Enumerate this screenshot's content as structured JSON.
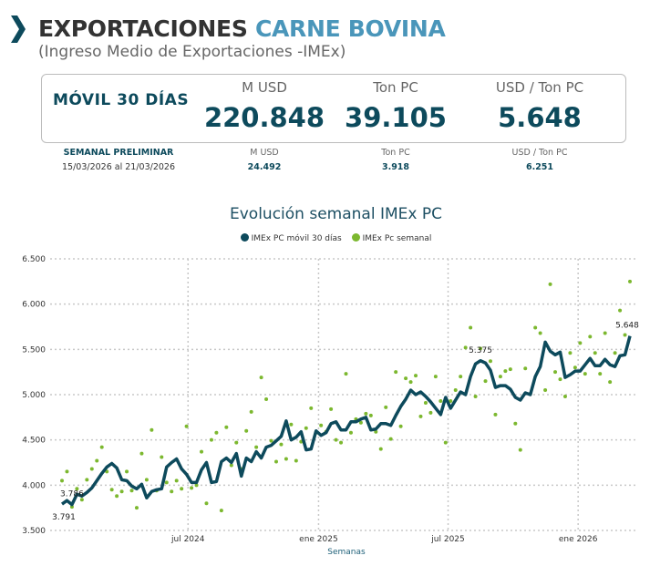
{
  "header": {
    "title_part1": "EXPORTACIONES",
    "title_part2": "CARNE BOVINA",
    "subtitle": "(Ingreso Medio de Exportaciones -IMEx)"
  },
  "summary": {
    "label": "MÓVIL 30 DÍAS",
    "columns": [
      {
        "label": "M USD",
        "value": "220.848"
      },
      {
        "label": "Ton PC",
        "value": "39.105"
      },
      {
        "label": "USD / Ton PC",
        "value": "5.648"
      }
    ]
  },
  "weekly": {
    "label": "SEMANAL PRELIMINAR",
    "range": "15/03/2026 al 21/03/2026",
    "columns": [
      {
        "label": "M USD",
        "value": "24.492"
      },
      {
        "label": "Ton PC",
        "value": "3.918"
      },
      {
        "label": "USD / Ton PC",
        "value": "6.251"
      }
    ]
  },
  "colors": {
    "accent": "#4a96ba",
    "dark": "#0d4a5c",
    "green": "#7cb82f"
  },
  "chart_data": {
    "type": "line",
    "title": "Evolución semanal IMEx PC",
    "xlabel": "Semanas",
    "ylabel": "",
    "ylim": [
      3500,
      6500
    ],
    "yticks": [
      3500,
      4000,
      4500,
      5000,
      5500,
      6000,
      6500
    ],
    "ytick_labels": [
      "3.500",
      "4.000",
      "4.500",
      "5.000",
      "5.500",
      "6.000",
      "6.500"
    ],
    "xticks": [
      {
        "week": 25.3,
        "label": "jul 2024"
      },
      {
        "week": 51.5,
        "label": "ene 2025"
      },
      {
        "week": 77.5,
        "label": "jul 2025"
      },
      {
        "week": 103.6,
        "label": "ene 2026"
      }
    ],
    "grid": true,
    "legend_position": "top-center",
    "series": [
      {
        "name": "IMEx PC móvil 30 días",
        "kind": "line",
        "color": "#0d4a5c",
        "values": [
          3791,
          3830,
          3786,
          3900,
          3880,
          3920,
          3970,
          4050,
          4130,
          4200,
          4240,
          4190,
          4060,
          4050,
          3990,
          3960,
          4010,
          3860,
          3930,
          3950,
          3960,
          4200,
          4250,
          4290,
          4180,
          4120,
          4030,
          4030,
          4170,
          4250,
          4030,
          4040,
          4260,
          4300,
          4250,
          4350,
          4100,
          4300,
          4260,
          4370,
          4300,
          4420,
          4440,
          4490,
          4540,
          4710,
          4500,
          4530,
          4590,
          4390,
          4400,
          4600,
          4550,
          4580,
          4680,
          4700,
          4610,
          4610,
          4700,
          4700,
          4730,
          4750,
          4610,
          4620,
          4680,
          4680,
          4660,
          4770,
          4870,
          4950,
          5050,
          5000,
          5030,
          4980,
          4920,
          4850,
          4780,
          4970,
          4850,
          4940,
          5030,
          5000,
          5200,
          5340,
          5375,
          5350,
          5270,
          5080,
          5100,
          5100,
          5060,
          4970,
          4940,
          5020,
          5000,
          5200,
          5310,
          5580,
          5480,
          5440,
          5470,
          5190,
          5220,
          5260,
          5260,
          5330,
          5400,
          5320,
          5320,
          5390,
          5330,
          5310,
          5430,
          5440,
          5648
        ]
      },
      {
        "name": "IMEx Pc semanal",
        "kind": "scatter",
        "color": "#7cb82f",
        "values": [
          4050,
          4150,
          3760,
          3960,
          3840,
          4060,
          4180,
          4270,
          4420,
          4150,
          3950,
          3880,
          3930,
          4150,
          3940,
          3750,
          4350,
          4060,
          4610,
          3940,
          4310,
          4030,
          3930,
          4050,
          3960,
          4650,
          3970,
          4000,
          4370,
          3800,
          4500,
          4580,
          3720,
          4640,
          4220,
          4470,
          4180,
          4600,
          4810,
          4420,
          5190,
          4950,
          4490,
          4260,
          4450,
          4290,
          4670,
          4270,
          4480,
          4630,
          4850,
          4580,
          4660,
          4590,
          4840,
          4500,
          4470,
          5230,
          4580,
          4730,
          4690,
          4790,
          4770,
          4590,
          4400,
          4860,
          4510,
          5250,
          4650,
          5180,
          5140,
          5210,
          4760,
          4910,
          4800,
          5200,
          4930,
          4470,
          4930,
          5050,
          5200,
          5520,
          5740,
          4980,
          5510,
          5150,
          5370,
          4780,
          5200,
          5260,
          5280,
          4680,
          4390,
          5290,
          5010,
          5740,
          5680,
          5050,
          6220,
          5250,
          5170,
          4980,
          5460,
          5300,
          5570,
          5230,
          5640,
          5460,
          5230,
          5680,
          5140,
          5460,
          5930,
          5660,
          6250
        ]
      }
    ],
    "annotations": [
      {
        "week": 0,
        "text": "3.791",
        "pos": "below"
      },
      {
        "week": 2,
        "text": "3.786",
        "pos": "above"
      },
      {
        "week": 84,
        "text": "5.375",
        "pos": "above"
      },
      {
        "week": 114,
        "text": "5.648",
        "pos": "above"
      }
    ]
  }
}
